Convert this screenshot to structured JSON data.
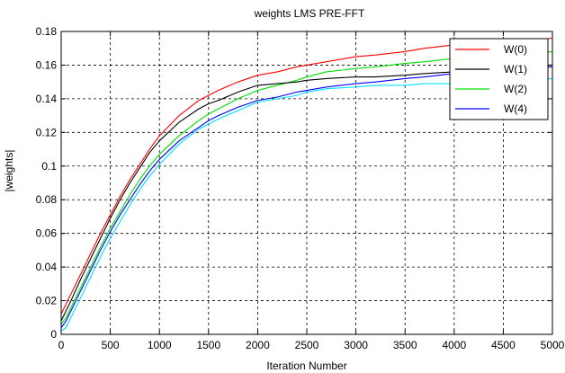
{
  "chart_data": {
    "type": "line",
    "title": "weights LMS PRE-FFT",
    "xlabel": "Iteration Number",
    "ylabel": "|weights|",
    "xlim": [
      0,
      5000
    ],
    "ylim": [
      0,
      0.18
    ],
    "xticks": [
      0,
      500,
      1000,
      1500,
      2000,
      2500,
      3000,
      3500,
      4000,
      4500,
      5000
    ],
    "yticks": [
      0,
      0.02,
      0.04,
      0.06,
      0.08,
      0.1,
      0.12,
      0.14,
      0.16,
      0.18
    ],
    "xtick_labels": [
      "0",
      "500",
      "1000",
      "1500",
      "2000",
      "2500",
      "3000",
      "3500",
      "4000",
      "4500",
      "5000"
    ],
    "ytick_labels": [
      "0",
      "0.02",
      "0.04",
      "0.06",
      "0.08",
      "0.1",
      "0.12",
      "0.14",
      "0.16",
      "0.18"
    ],
    "grid": true,
    "legend_position": "top-right",
    "series": [
      {
        "name": "W(0)",
        "color": "#ff0000",
        "x": [
          0,
          50,
          100,
          200,
          300,
          400,
          500,
          600,
          700,
          800,
          900,
          1000,
          1200,
          1400,
          1500,
          1600,
          1800,
          2000,
          2200,
          2400,
          2500,
          2700,
          3000,
          3200,
          3500,
          3700,
          4000,
          4300,
          4500,
          4800,
          5000
        ],
        "y": [
          0.012,
          0.018,
          0.024,
          0.036,
          0.048,
          0.06,
          0.071,
          0.082,
          0.092,
          0.101,
          0.11,
          0.118,
          0.13,
          0.139,
          0.142,
          0.145,
          0.15,
          0.154,
          0.156,
          0.159,
          0.16,
          0.162,
          0.165,
          0.166,
          0.168,
          0.17,
          0.172,
          0.173,
          0.174,
          0.175,
          0.176
        ]
      },
      {
        "name": "W(1)",
        "color": "#000000",
        "x": [
          0,
          50,
          100,
          200,
          300,
          400,
          500,
          600,
          700,
          800,
          900,
          1000,
          1200,
          1400,
          1500,
          1600,
          1800,
          2000,
          2200,
          2400,
          2500,
          2700,
          3000,
          3200,
          3500,
          3700,
          4000,
          4300,
          4500,
          4800,
          5000
        ],
        "y": [
          0.008,
          0.014,
          0.02,
          0.033,
          0.045,
          0.057,
          0.069,
          0.08,
          0.09,
          0.099,
          0.108,
          0.115,
          0.126,
          0.134,
          0.137,
          0.139,
          0.144,
          0.148,
          0.149,
          0.15,
          0.151,
          0.152,
          0.153,
          0.153,
          0.154,
          0.155,
          0.156,
          0.157,
          0.158,
          0.159,
          0.16
        ]
      },
      {
        "name": "W(2)",
        "color": "#00e000",
        "x": [
          0,
          50,
          100,
          200,
          300,
          400,
          500,
          600,
          700,
          800,
          900,
          1000,
          1200,
          1400,
          1500,
          1600,
          1800,
          2000,
          2200,
          2400,
          2500,
          2700,
          3000,
          3200,
          3500,
          3700,
          4000,
          4300,
          4500,
          4800,
          5000
        ],
        "y": [
          0.006,
          0.01,
          0.016,
          0.028,
          0.04,
          0.052,
          0.063,
          0.073,
          0.083,
          0.092,
          0.1,
          0.107,
          0.118,
          0.127,
          0.131,
          0.134,
          0.14,
          0.145,
          0.148,
          0.151,
          0.153,
          0.156,
          0.158,
          0.159,
          0.161,
          0.162,
          0.164,
          0.165,
          0.166,
          0.167,
          0.168
        ]
      },
      {
        "name": "W(4)",
        "color": "#0000ff",
        "x": [
          0,
          50,
          100,
          200,
          300,
          400,
          500,
          600,
          700,
          800,
          900,
          1000,
          1200,
          1400,
          1500,
          1600,
          1800,
          2000,
          2200,
          2400,
          2500,
          2700,
          3000,
          3200,
          3500,
          3700,
          4000,
          4300,
          4500,
          4800,
          5000
        ],
        "y": [
          0.004,
          0.008,
          0.014,
          0.026,
          0.038,
          0.05,
          0.061,
          0.071,
          0.08,
          0.089,
          0.097,
          0.104,
          0.115,
          0.123,
          0.127,
          0.13,
          0.135,
          0.139,
          0.141,
          0.144,
          0.145,
          0.147,
          0.149,
          0.15,
          0.152,
          0.153,
          0.155,
          0.156,
          0.157,
          0.158,
          0.159
        ]
      },
      {
        "color": "#00e0ff",
        "x": [
          0,
          50,
          100,
          200,
          300,
          400,
          500,
          600,
          700,
          800,
          900,
          1000,
          1200,
          1400,
          1500,
          1600,
          1800,
          2000,
          2200,
          2400,
          2500,
          2700,
          3000,
          3200,
          3500,
          3700,
          4000,
          4300,
          4500,
          4800,
          5000
        ],
        "y": [
          0.002,
          0.004,
          0.01,
          0.022,
          0.034,
          0.046,
          0.057,
          0.067,
          0.077,
          0.086,
          0.094,
          0.101,
          0.113,
          0.122,
          0.125,
          0.128,
          0.133,
          0.138,
          0.14,
          0.142,
          0.144,
          0.146,
          0.147,
          0.148,
          0.148,
          0.149,
          0.149,
          0.15,
          0.15,
          0.151,
          0.152
        ]
      }
    ]
  }
}
